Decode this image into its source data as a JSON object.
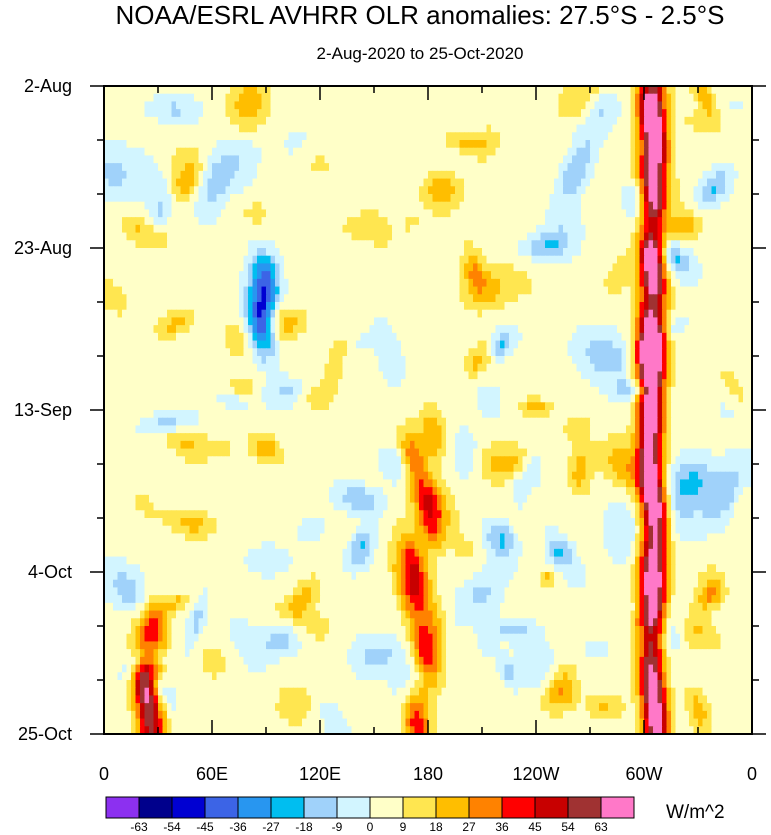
{
  "chart_data": {
    "type": "heatmap",
    "title": "NOAA/ESRL AVHRR OLR anomalies: 27.5°S - 2.5°S",
    "subtitle": "2-Aug-2020 to 25-Oct-2020",
    "x_ticks": [
      {
        "label": "0",
        "lon": 0
      },
      {
        "label": "60E",
        "lon": 60
      },
      {
        "label": "120E",
        "lon": 120
      },
      {
        "label": "180",
        "lon": 180
      },
      {
        "label": "120W",
        "lon": 240
      },
      {
        "label": "60W",
        "lon": 300
      },
      {
        "label": "0",
        "lon": 360
      }
    ],
    "xlim": [
      0,
      360
    ],
    "y_ticks": [
      {
        "label": "2-Aug",
        "day": 0
      },
      {
        "label": "23-Aug",
        "day": 21
      },
      {
        "label": "13-Sep",
        "day": 42
      },
      {
        "label": "4-Oct",
        "day": 63
      },
      {
        "label": "25-Oct",
        "day": 84
      }
    ],
    "ylim": [
      0,
      84
    ],
    "colorbar": {
      "unit": "W/m^2",
      "levels": [
        "-63",
        "-54",
        "-45",
        "-36",
        "-27",
        "-18",
        "-9",
        "0",
        "9",
        "18",
        "27",
        "36",
        "45",
        "54",
        "63"
      ],
      "colors": [
        "#8c30f0",
        "#00008c",
        "#0000d2",
        "#3c64e6",
        "#2896f0",
        "#00bef0",
        "#a0d2fa",
        "#d2f5ff",
        "#ffffc8",
        "#ffe650",
        "#ffbe00",
        "#ff8200",
        "#ff0000",
        "#c80000",
        "#a03232",
        "#ff78c8"
      ]
    },
    "features": [
      {
        "name": "strong positive anomaly band near 60W",
        "lon": [
          300,
          310
        ],
        "days": [
          0,
          84
        ],
        "peak": 54
      },
      {
        "name": "positive anomaly cluster near 180",
        "lon": [
          150,
          200
        ],
        "days": [
          45,
          84
        ],
        "peak": 36
      },
      {
        "name": "negative anomaly cluster near 90E",
        "lon": [
          80,
          95
        ],
        "days": [
          25,
          32
        ],
        "peak": -54
      },
      {
        "name": "positive anomaly near 25E",
        "lon": [
          15,
          35
        ],
        "days": [
          70,
          84
        ],
        "peak": 45
      }
    ]
  }
}
